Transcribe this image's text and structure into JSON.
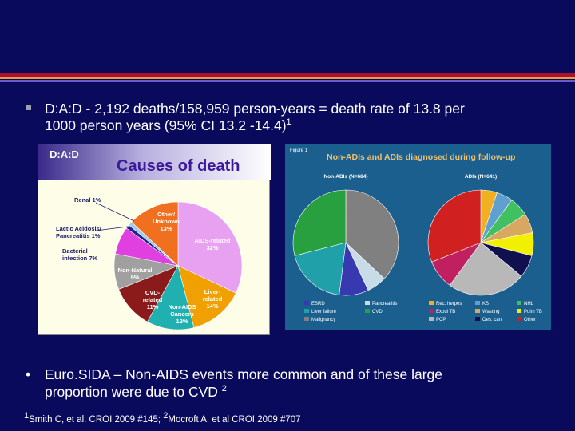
{
  "bullet1": {
    "line1": "D:A:D - 2,192 deaths/158,959 person-years = death rate of 13.8 per",
    "line2": "1000 person years (95% CI 13.2 -14.4)",
    "sup": "1"
  },
  "bullet2": {
    "dot": "•",
    "line1": "Euro.SIDA – Non-AIDS events more common and of these large",
    "line2": "proportion were due to CVD",
    "sup": "2"
  },
  "footnote": {
    "sup1": "1",
    "text1": "Smith C, et al. CROI 2009 #145; ",
    "sup2": "2",
    "text2": "Mocroft A, et al CROI 2009 #707"
  },
  "chart_data": [
    {
      "type": "pie",
      "header": "D:A:D",
      "title": "Causes of death",
      "slices": [
        {
          "label": "AIDS-related",
          "value": 32,
          "value_text": "32%",
          "color": "#e8a0f0"
        },
        {
          "label": "Liver-related",
          "value": 14,
          "value_text": "14%",
          "color": "#f0a000"
        },
        {
          "label": "Non-AIDS Cancers",
          "value": 12,
          "value_text": "12%",
          "color": "#20b0b0"
        },
        {
          "label": "CVD-related",
          "value": 11,
          "value_text": "11%",
          "color": "#8b1a1a"
        },
        {
          "label": "Non-Natural",
          "value": 9,
          "value_text": "9%",
          "color": "#a0a0a0"
        },
        {
          "label": "Bacterial Infection",
          "value": 7,
          "value_text": "7%",
          "color": "#e040e0"
        },
        {
          "label": "Lactic Acidosis/ Pancreatitis",
          "value": 1,
          "value_text": "1%",
          "color": "#222288"
        },
        {
          "label": "Renal",
          "value": 1,
          "value_text": "1%",
          "color": "#a0c8e8"
        },
        {
          "label": "Other/ Unknown",
          "value": 13,
          "value_text": "13%",
          "color": "#f07020"
        }
      ],
      "labels": {
        "aids": [
          "AIDS-related",
          "32%"
        ],
        "liver": [
          "Liver-",
          "related",
          "14%"
        ],
        "cancer": [
          "Non-AIDS",
          "Cancers",
          "12%"
        ],
        "cvd": [
          "CVD-",
          "related",
          "11%"
        ],
        "nonnatural": [
          "Non-Natural",
          "9%"
        ],
        "bacterial": [
          "Bacterial",
          "infection 7%"
        ],
        "lactic": [
          "Lactic Acidosis/",
          "Pancreatitis 1%"
        ],
        "renal": [
          "Renal 1%"
        ],
        "other": [
          "Other/",
          "Unknown",
          "13%"
        ]
      }
    },
    {
      "type": "pie",
      "figure_label": "Figure 1",
      "title": "Non-ADIs and ADIs diagnosed during follow-up",
      "pies": [
        {
          "label": "Non-ADIs (N=684)",
          "slices": [
            {
              "name": "Malignancy",
              "value": 37,
              "color": "#808080"
            },
            {
              "name": "Pancreatitis",
              "value": 6,
              "color": "#c8dce8"
            },
            {
              "name": "ESRD",
              "value": 9,
              "color": "#3838b0"
            },
            {
              "name": "Liver failure",
              "value": 19,
              "color": "#20a0a8"
            },
            {
              "name": "CVD",
              "value": 29,
              "color": "#28a040"
            }
          ]
        },
        {
          "label": "ADIs (N=641)",
          "slices": [
            {
              "name": "Rec. herpes",
              "value": 5,
              "color": "#f0b020"
            },
            {
              "name": "KS",
              "value": 5,
              "color": "#60a0d0"
            },
            {
              "name": "NHL",
              "value": 6,
              "color": "#40c060"
            },
            {
              "name": "Wasting",
              "value": 6,
              "color": "#d8a860"
            },
            {
              "name": "Pulm TB",
              "value": 7,
              "color": "#f0f000"
            },
            {
              "name": "Oes. can",
              "value": 7,
              "color": "#101050"
            },
            {
              "name": "PCP",
              "value": 24,
              "color": "#b8b8b8"
            },
            {
              "name": "Expul TB",
              "value": 9,
              "color": "#c02060"
            },
            {
              "name": "Other",
              "value": 31,
              "color": "#d02020"
            }
          ]
        }
      ],
      "legend": [
        {
          "name": "ESRD",
          "color": "#3838b0"
        },
        {
          "name": "Pancreatitis",
          "color": "#c8dce8"
        },
        {
          "name": "Liver failure",
          "color": "#20a0a8"
        },
        {
          "name": "CVD",
          "color": "#28a040"
        },
        {
          "name": "Malignancy",
          "color": "#808080"
        },
        {
          "name": "Rec. herpes",
          "color": "#f0b020"
        },
        {
          "name": "KS",
          "color": "#60a0d0"
        },
        {
          "name": "NHL",
          "color": "#40c060"
        },
        {
          "name": "Expul TB",
          "color": "#c02060"
        },
        {
          "name": "Wasting",
          "color": "#d8a860"
        },
        {
          "name": "Pulm TB",
          "color": "#f0f000"
        },
        {
          "name": "PCP",
          "color": "#b8b8b8"
        },
        {
          "name": "Oes. can",
          "color": "#101050"
        },
        {
          "name": "Other",
          "color": "#d02020"
        }
      ]
    }
  ]
}
